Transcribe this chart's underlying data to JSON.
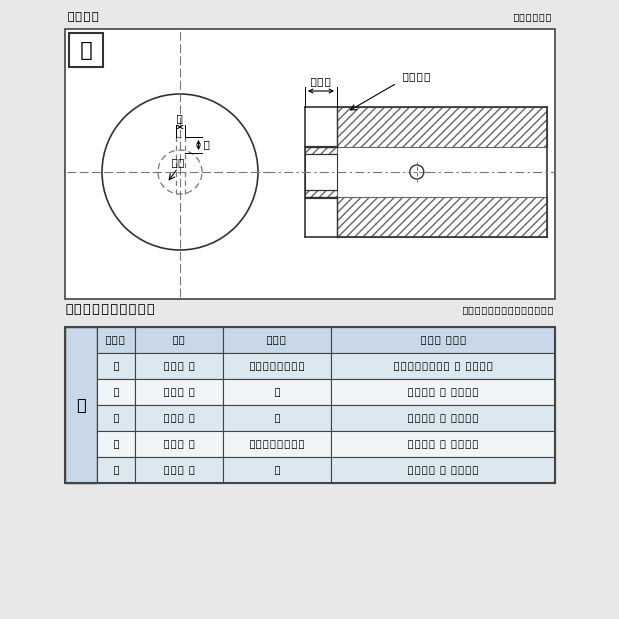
{
  "title_drawing": "軸穴形状",
  "title_drawing_code": "図5TC-3",
  "title_table": "軸穴形状コード一覧表",
  "title_table_unit": "（単位:mm）　表5TC-3",
  "dim_55": "5.5",
  "dim_4M6": "4－M6",
  "label_b": "b",
  "label_h": "h",
  "label_phid": "φd",
  "col_headers": [
    "No.",
    "φd",
    "b×h",
    "コード No."
  ],
  "rows": [
    [
      "1",
      "15H 7",
      "5Js9×2.3",
      "05TC-15K 5 JM64"
    ],
    [
      "2",
      "16H 7",
      "〃",
      "-16K 5 JM64"
    ],
    [
      "3",
      "17H 7",
      "〃",
      "-17K 5 JM64"
    ],
    [
      "4",
      "18H 7",
      "6Js9×2.8",
      "-18K 6 JM64"
    ],
    [
      "5",
      "20H 7",
      "〃",
      "-20K 6 JM64"
    ]
  ],
  "page_bg": "#e8e8e8",
  "drawing_bg": "#ffffff",
  "header_bg": "#c8d8e8",
  "row_bg_light": "#dce8f0",
  "row_bg_white": "#f0f5f8",
  "border_color": "#444444",
  "line_color": "#333333",
  "dash_color": "#777777",
  "hatch_color": "#666666"
}
